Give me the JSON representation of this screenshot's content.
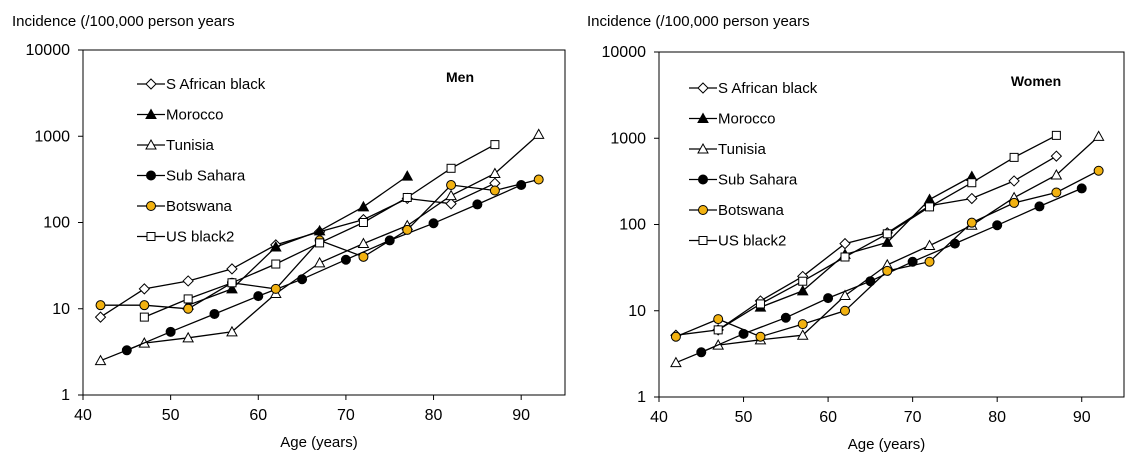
{
  "chart_data": [
    {
      "type": "line",
      "yscale": "log",
      "title": "Men",
      "ylabel": "Incidence (/100,000 person years",
      "xlabel": "Age (years)",
      "xlim": [
        40,
        95
      ],
      "ylim": [
        1,
        10000
      ],
      "xticks": [
        40,
        50,
        60,
        70,
        80,
        90
      ],
      "yticks": [
        1,
        10,
        100,
        1000,
        10000
      ],
      "legend_position": "top-left",
      "series": [
        {
          "name": "S African black",
          "marker": "diamond-open",
          "color": "#000000",
          "x": [
            42,
            47,
            52,
            57,
            62,
            67,
            72,
            77,
            82,
            87
          ],
          "y": [
            8,
            17,
            21,
            29,
            55,
            78,
            108,
            190,
            165,
            285
          ]
        },
        {
          "name": "Morocco",
          "marker": "triangle-filled",
          "color": "#000000",
          "x": [
            52,
            57,
            62,
            67,
            72,
            77
          ],
          "y": [
            11,
            17,
            52,
            80,
            152,
            345
          ]
        },
        {
          "name": "Tunisia",
          "marker": "triangle-open",
          "color": "#000000",
          "x": [
            42,
            47,
            52,
            57,
            62,
            67,
            72,
            77,
            82,
            87,
            92
          ],
          "y": [
            2.5,
            4,
            4.6,
            5.4,
            15,
            34,
            57,
            92,
            205,
            370,
            1050
          ]
        },
        {
          "name": "Sub Sahara",
          "marker": "circle-filled",
          "color": "#000000",
          "x": [
            45,
            50,
            55,
            60,
            65,
            70,
            75,
            80,
            85,
            90
          ],
          "y": [
            3.3,
            5.4,
            8.7,
            14,
            22,
            37,
            62,
            98,
            162,
            272
          ]
        },
        {
          "name": "Botswana",
          "marker": "circle-orange",
          "color": "#000000",
          "x": [
            42,
            47,
            52,
            57,
            62,
            67,
            72,
            77,
            82,
            87,
            92
          ],
          "y": [
            11,
            11,
            10,
            20,
            17,
            62,
            40,
            82,
            272,
            235,
            315
          ]
        },
        {
          "name": "US black2",
          "marker": "square-open",
          "color": "#000000",
          "x": [
            47,
            52,
            57,
            62,
            67,
            72,
            77,
            82,
            87
          ],
          "y": [
            8,
            13,
            20,
            33,
            58,
            100,
            195,
            425,
            800
          ]
        }
      ]
    },
    {
      "type": "line",
      "yscale": "log",
      "title": "Women",
      "ylabel": "Incidence (/100,000 person years",
      "xlabel": "Age (years)",
      "xlim": [
        40,
        95
      ],
      "ylim": [
        1,
        10000
      ],
      "xticks": [
        40,
        50,
        60,
        70,
        80,
        90
      ],
      "yticks": [
        1,
        10,
        100,
        1000,
        10000
      ],
      "legend_position": "top-left",
      "series": [
        {
          "name": "S African black",
          "marker": "diamond-open",
          "color": "#000000",
          "x": [
            42,
            47,
            52,
            57,
            62,
            67,
            72,
            77,
            82,
            87
          ],
          "y": [
            5.2,
            6,
            13,
            25,
            60,
            80,
            165,
            200,
            320,
            620
          ]
        },
        {
          "name": "Morocco",
          "marker": "triangle-filled",
          "color": "#000000",
          "x": [
            52,
            57,
            62,
            67,
            72,
            77
          ],
          "y": [
            11,
            17,
            45,
            62,
            195,
            360
          ]
        },
        {
          "name": "Tunisia",
          "marker": "triangle-open",
          "color": "#000000",
          "x": [
            42,
            47,
            52,
            57,
            62,
            67,
            72,
            77,
            82,
            87,
            92
          ],
          "y": [
            2.5,
            4,
            4.6,
            5.2,
            15,
            34,
            57,
            98,
            205,
            375,
            1050
          ]
        },
        {
          "name": "Sub Sahara",
          "marker": "circle-filled",
          "color": "#000000",
          "x": [
            45,
            50,
            55,
            60,
            65,
            70,
            75,
            80,
            85,
            90
          ],
          "y": [
            3.3,
            5.4,
            8.3,
            14,
            22,
            37,
            60,
            98,
            162,
            262
          ]
        },
        {
          "name": "Botswana",
          "marker": "circle-orange",
          "color": "#000000",
          "x": [
            42,
            47,
            52,
            57,
            62,
            67,
            72,
            77,
            82,
            87,
            92
          ],
          "y": [
            5,
            8,
            5,
            7,
            10,
            29,
            37,
            105,
            178,
            235,
            420
          ]
        },
        {
          "name": "US black2",
          "marker": "square-open",
          "color": "#000000",
          "x": [
            47,
            52,
            57,
            62,
            67,
            72,
            77,
            82,
            87
          ],
          "y": [
            6,
            12,
            22,
            42,
            78,
            160,
            305,
            600,
            1080
          ]
        }
      ]
    }
  ],
  "colors": {
    "axis": "#000000",
    "line": "#000000",
    "botswana_fill": "#F2B211"
  }
}
